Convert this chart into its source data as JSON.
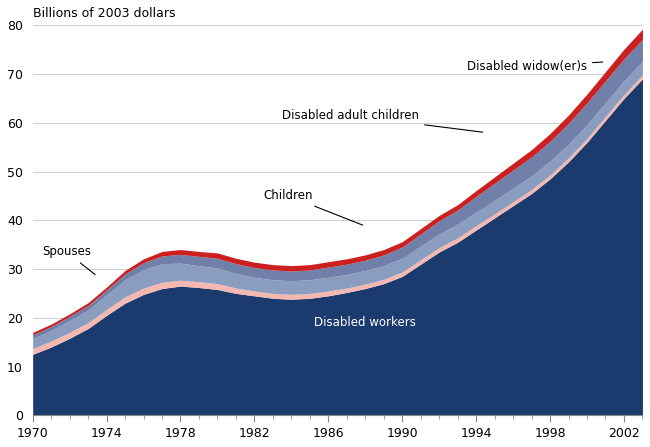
{
  "years": [
    1970,
    1971,
    1972,
    1973,
    1974,
    1975,
    1976,
    1977,
    1978,
    1979,
    1980,
    1981,
    1982,
    1983,
    1984,
    1985,
    1986,
    1987,
    1988,
    1989,
    1990,
    1991,
    1992,
    1993,
    1994,
    1995,
    1996,
    1997,
    1998,
    1999,
    2000,
    2001,
    2002,
    2003
  ],
  "disabled_workers": [
    12.5,
    14.0,
    15.8,
    17.8,
    20.5,
    23.0,
    24.8,
    26.0,
    26.5,
    26.2,
    25.8,
    25.0,
    24.5,
    24.0,
    23.8,
    24.0,
    24.5,
    25.2,
    26.0,
    27.0,
    28.5,
    31.0,
    33.5,
    35.5,
    38.0,
    40.5,
    43.0,
    45.5,
    48.5,
    52.0,
    56.0,
    60.5,
    65.0,
    69.0
  ],
  "spouses": [
    1.2,
    1.2,
    1.2,
    1.2,
    1.2,
    1.3,
    1.3,
    1.3,
    1.2,
    1.2,
    1.2,
    1.1,
    1.0,
    1.0,
    1.0,
    1.0,
    1.0,
    0.9,
    0.9,
    0.9,
    0.9,
    0.9,
    0.9,
    0.9,
    0.9,
    0.8,
    0.8,
    0.8,
    0.8,
    0.8,
    0.8,
    0.8,
    0.8,
    0.8
  ],
  "children": [
    2.0,
    2.2,
    2.4,
    2.6,
    3.0,
    3.5,
    3.8,
    3.8,
    3.5,
    3.3,
    3.2,
    3.0,
    2.8,
    2.8,
    2.8,
    2.8,
    2.8,
    2.8,
    2.8,
    2.8,
    2.8,
    2.8,
    2.8,
    2.8,
    2.8,
    2.8,
    2.8,
    2.8,
    2.8,
    2.8,
    2.8,
    2.8,
    2.8,
    2.8
  ],
  "disabled_adult_children": [
    0.8,
    0.8,
    0.9,
    0.9,
    1.0,
    1.2,
    1.4,
    1.6,
    1.8,
    1.9,
    2.0,
    2.0,
    2.0,
    2.0,
    2.0,
    2.0,
    2.1,
    2.1,
    2.1,
    2.2,
    2.3,
    2.5,
    2.7,
    2.9,
    3.2,
    3.5,
    3.7,
    3.9,
    4.1,
    4.3,
    4.5,
    4.5,
    4.5,
    4.5
  ],
  "disabled_widowers": [
    0.5,
    0.5,
    0.5,
    0.6,
    0.6,
    0.7,
    0.8,
    0.9,
    1.0,
    1.0,
    1.1,
    1.1,
    1.1,
    1.1,
    1.1,
    1.1,
    1.1,
    1.1,
    1.1,
    1.1,
    1.1,
    1.1,
    1.1,
    1.1,
    1.2,
    1.3,
    1.4,
    1.5,
    1.6,
    1.7,
    1.8,
    1.9,
    2.0,
    2.1
  ],
  "colors": {
    "disabled_workers": "#1b3a6e",
    "spouses": "#f5b8b0",
    "children": "#8a9dbf",
    "disabled_adult_children": "#7080a8",
    "disabled_widowers": "#cc2020"
  },
  "ylabel": "Billions of 2003 dollars",
  "ylim": [
    0,
    80
  ],
  "yticks": [
    0,
    10,
    20,
    30,
    40,
    50,
    60,
    70,
    80
  ],
  "xlim": [
    1970,
    2003
  ],
  "xticks": [
    1970,
    1974,
    1978,
    1982,
    1986,
    1990,
    1994,
    1998,
    2002
  ],
  "labels": {
    "spouses": "Spouses",
    "children": "Children",
    "disabled_adult_children": "Disabled adult children",
    "disabled_widowers": "Disabled widow(er)s"
  }
}
